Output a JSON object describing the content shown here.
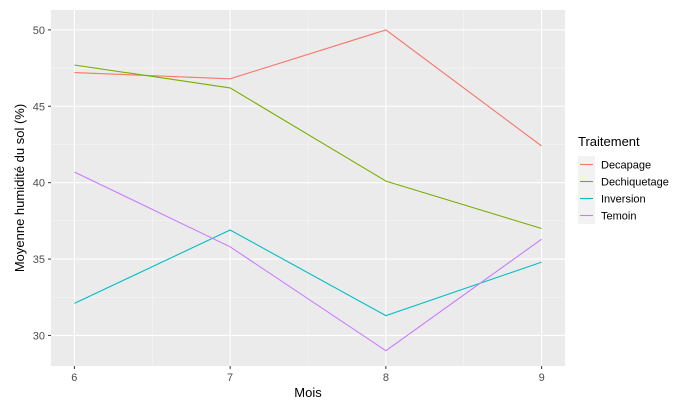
{
  "chart_data": {
    "type": "line",
    "xlabel": "Mois",
    "ylabel": "Moyenne humidité du sol (%)",
    "x": [
      6,
      7,
      8,
      9
    ],
    "x_ticks": [
      "6",
      "7",
      "8",
      "9"
    ],
    "xlim": [
      5.85,
      9.15
    ],
    "ylim": [
      28.0,
      51.3
    ],
    "y_ticks": [
      30,
      35,
      40,
      45,
      50
    ],
    "grid": true,
    "legend": {
      "title": "Traitement",
      "position": "right"
    },
    "series": [
      {
        "name": "Decapage",
        "color": "#F8766D",
        "values": [
          47.2,
          46.8,
          50.0,
          42.4
        ]
      },
      {
        "name": "Dechiquetage",
        "color": "#7CAE00",
        "values": [
          47.7,
          46.2,
          40.1,
          37.0
        ]
      },
      {
        "name": "Inversion",
        "color": "#00BFC4",
        "values": [
          32.1,
          36.9,
          31.3,
          34.8
        ]
      },
      {
        "name": "Temoin",
        "color": "#C77CFF",
        "values": [
          40.7,
          35.8,
          29.0,
          36.3
        ]
      }
    ]
  }
}
